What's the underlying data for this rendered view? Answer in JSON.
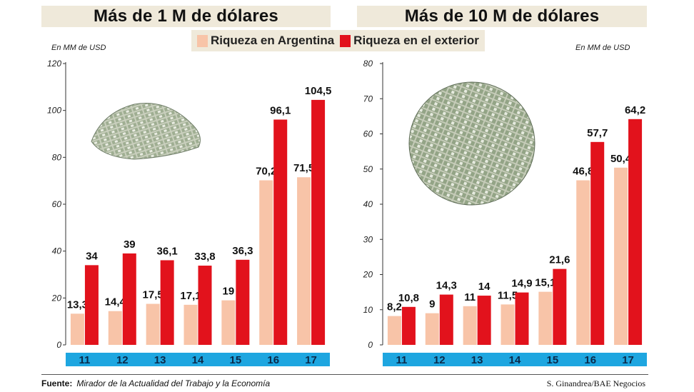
{
  "colors": {
    "argentina": "#f8c4a8",
    "exterior": "#e2121c",
    "year_band": "#1ea6e0",
    "panel_bg": "#efe9da"
  },
  "legend": {
    "argentina_label": "Riqueza en Argentina",
    "exterior_label": "Riqueza en el exterior"
  },
  "footer": {
    "source_label": "Fuente:",
    "source_text": "Mirador de la Actualidad del Trabajo y la Economía",
    "credit": "S. Ginandrea/BAE Negocios"
  },
  "decorations": [
    "money-pile-small",
    "money-pile-large"
  ],
  "chart_data": [
    {
      "type": "bar",
      "title": "Más de 1 M de dólares",
      "unit_label": "En MM de USD",
      "categories": [
        "11",
        "12",
        "13",
        "14",
        "15",
        "16",
        "17"
      ],
      "series": [
        {
          "name": "Riqueza en Argentina",
          "values": [
            13.3,
            14.4,
            17.5,
            17.1,
            19,
            70.2,
            71.5
          ],
          "labels": [
            "13,3",
            "14,4",
            "17,5",
            "17,1",
            "19",
            "70,2",
            "71,5"
          ]
        },
        {
          "name": "Riqueza en el exterior",
          "values": [
            34,
            39,
            36.1,
            33.8,
            36.3,
            96.1,
            104.5
          ],
          "labels": [
            "34",
            "39",
            "36,1",
            "33,8",
            "36,3",
            "96,1",
            "104,5"
          ]
        }
      ],
      "ylim": [
        0,
        120
      ],
      "yticks": [
        "0",
        "20",
        "40",
        "60",
        "80",
        "100",
        "120"
      ],
      "grid": false,
      "legend_position": "top-center"
    },
    {
      "type": "bar",
      "title": "Más de 10 M de dólares",
      "unit_label": "En MM de USD",
      "categories": [
        "11",
        "12",
        "13",
        "14",
        "15",
        "16",
        "17"
      ],
      "series": [
        {
          "name": "Riqueza en Argentina",
          "values": [
            8.2,
            9,
            11,
            11.5,
            15.1,
            46.8,
            50.4
          ],
          "labels": [
            "8,2",
            "9",
            "11",
            "11,5",
            "15,1",
            "46,8",
            "50,4"
          ]
        },
        {
          "name": "Riqueza en el exterior",
          "values": [
            10.8,
            14.3,
            14,
            14.9,
            21.6,
            57.7,
            64.2
          ],
          "labels": [
            "10,8",
            "14,3",
            "14",
            "14,9",
            "21,6",
            "57,7",
            "64,2"
          ]
        }
      ],
      "ylim": [
        0,
        80
      ],
      "yticks": [
        "0",
        "10",
        "20",
        "30",
        "40",
        "50",
        "60",
        "70",
        "80"
      ],
      "grid": false,
      "legend_position": "top-center"
    }
  ]
}
